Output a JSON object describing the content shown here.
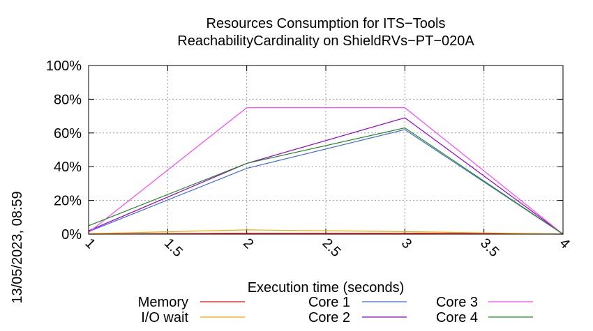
{
  "side_label": "13/05/2023, 08:59",
  "chart_data": {
    "type": "line",
    "title": [
      "Resources Consumption for ITS−Tools",
      "ReachabilityCardinality on ShieldRVs−PT−020A"
    ],
    "xlabel": "Execution time (seconds)",
    "ylabel": "",
    "xlim": [
      1,
      4
    ],
    "ylim": [
      0,
      100
    ],
    "grid": true,
    "legend_position": "bottom",
    "x_ticks": [
      1,
      1.5,
      2,
      2.5,
      3,
      3.5,
      4
    ],
    "x_tick_labels": [
      "1",
      "1.5",
      "2",
      "2.5",
      "3",
      "3.5",
      "4"
    ],
    "y_ticks": [
      0,
      20,
      40,
      60,
      80,
      100
    ],
    "y_tick_labels": [
      "0%",
      "20%",
      "40%",
      "60%",
      "80%",
      "100%"
    ],
    "series": [
      {
        "name": "Memory",
        "color": "#ff0000",
        "x": [
          1,
          2,
          3,
          4
        ],
        "y": [
          0,
          0.5,
          0.5,
          0
        ]
      },
      {
        "name": "I/O wait",
        "color": "#ffa500",
        "x": [
          1,
          2,
          3,
          4
        ],
        "y": [
          0.3,
          2.5,
          1.5,
          0
        ]
      },
      {
        "name": "Core 1",
        "color": "#4169e1",
        "x": [
          1,
          2,
          3,
          4
        ],
        "y": [
          1.5,
          39,
          62,
          0
        ]
      },
      {
        "name": "Core 2",
        "color": "#9400d3",
        "x": [
          1,
          2,
          3,
          4
        ],
        "y": [
          2,
          42,
          69,
          0
        ]
      },
      {
        "name": "Core 3",
        "color": "#ff44ff",
        "x": [
          1,
          2,
          3,
          4
        ],
        "y": [
          1,
          75,
          75,
          0
        ]
      },
      {
        "name": "Core 4",
        "color": "#228b22",
        "x": [
          1,
          2,
          3,
          4
        ],
        "y": [
          5,
          42,
          63,
          0
        ]
      }
    ]
  }
}
